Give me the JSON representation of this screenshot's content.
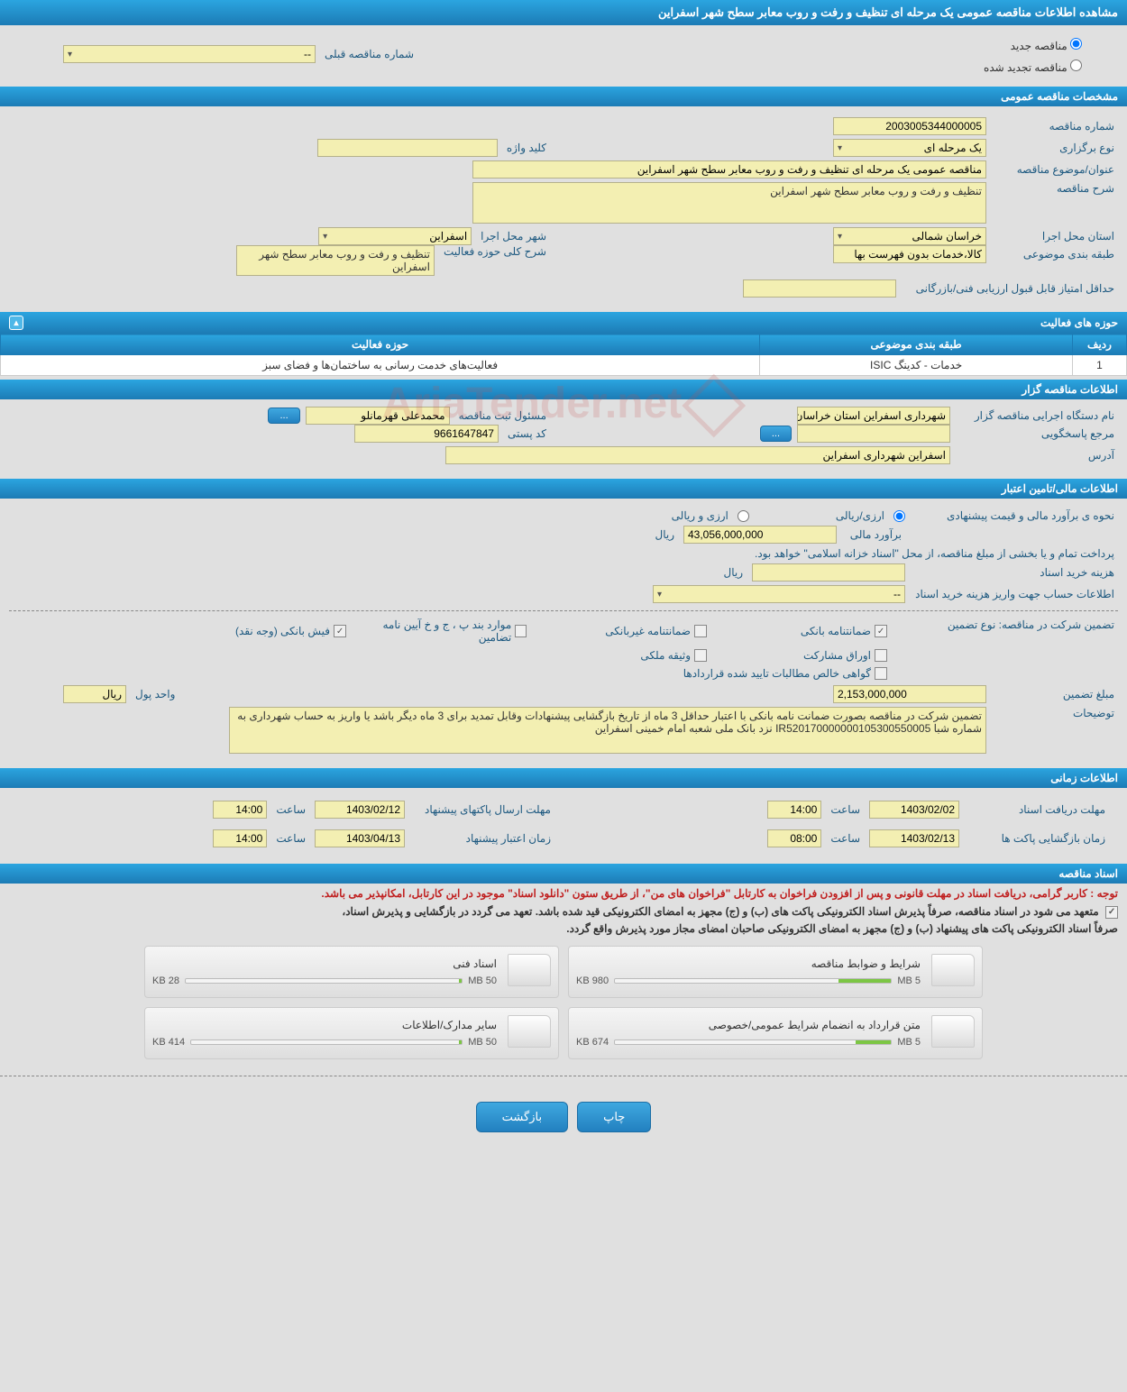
{
  "header": {
    "title": "مشاهده اطلاعات مناقصه عمومی یک مرحله ای تنظیف و رفت و روب معابر سطح شهر اسفراین"
  },
  "creation": {
    "new_label": "مناقصه جدید",
    "renew_label": "مناقصه تجدید شده",
    "prev_label": "شماره مناقصه قبلی",
    "prev_value": "--"
  },
  "general": {
    "section_title": "مشخصات مناقصه عمومی",
    "number_label": "شماره مناقصه",
    "number_value": "2003005344000005",
    "type_label": "نوع برگزاری",
    "type_value": "یک مرحله ای",
    "keyword_label": "کلید واژه",
    "keyword_value": "",
    "subject_label": "عنوان/موضوع مناقصه",
    "subject_value": "مناقصه عمومی یک مرحله ای تنظیف و رفت و روب معابر سطح شهر اسفراین",
    "desc_label": "شرح مناقصه",
    "desc_value": "تنظیف و رفت و روب معابر سطح شهر اسفراین",
    "province_label": "استان محل اجرا",
    "province_value": "خراسان شمالی",
    "city_label": "شهر محل اجرا",
    "city_value": "اسفراین",
    "category_label": "طبقه بندی موضوعی",
    "category_value": "کالا،خدمات بدون فهرست بها",
    "scope_desc_label": "شرح کلی حوزه فعالیت",
    "scope_desc_value": "تنظیف و رفت و روب معابر سطح شهر اسفراین",
    "min_score_label": "حداقل امتیاز قابل قبول ارزیابی فنی/بازرگانی",
    "min_score_value": ""
  },
  "activity": {
    "section_title": "حوزه های فعالیت",
    "headers": {
      "row": "ردیف",
      "category": "طبقه بندی موضوعی",
      "scope": "حوزه فعالیت"
    },
    "rows": [
      {
        "idx": "1",
        "category": "خدمات - کدینگ ISIC",
        "scope": "فعالیت‌های خدمت رسانی به ساختمان‌ها و فضای سبز"
      }
    ]
  },
  "organizer": {
    "section_title": "اطلاعات مناقصه گزار",
    "org_label": "نام دستگاه اجرایی مناقصه گزار",
    "org_value": "شهرداری اسفراین استان خراسان شمالی",
    "registrar_label": "مسئول ثبت مناقصه",
    "registrar_value": "محمدعلی قهرمانلو",
    "responder_label": "مرجع پاسخگویی",
    "responder_value": "",
    "postal_label": "کد پستی",
    "postal_value": "9661647847",
    "address_label": "آدرس",
    "address_value": "اسفراین شهرداری اسفراین"
  },
  "financial": {
    "section_title": "اطلاعات مالی/تامین اعتبار",
    "est_mode_label": "نحوه ی برآورد مالی و قیمت پیشنهادی",
    "est_mode_rial": "ارزی/ریالی",
    "est_mode_fx": "ارزی و ریالی",
    "est_label": "برآورد مالی",
    "est_value": "43,056,000,000",
    "currency": "ریال",
    "budget_note": "پرداخت تمام و یا بخشی از مبلغ مناقصه، از محل \"اسناد خزانه اسلامی\" خواهد بود.",
    "doc_cost_label": "هزینه خرید اسناد",
    "doc_cost_value": "",
    "doc_cost_currency": "ریال",
    "account_label": "اطلاعات حساب جهت واریز هزینه خرید اسناد",
    "account_value": "--",
    "guarantee_type_label": "تضمین شرکت در مناقصه:    نوع تضمین",
    "guarantee_checks": {
      "bank_guarantee": "ضمانتنامه بانکی",
      "non_bank_guarantee": "ضمانتنامه غیربانکی",
      "clause": "موارد بند پ ، ج و خ آیین نامه تضامین",
      "deposit": "فیش بانکی (وجه نقد)",
      "bonds": "اوراق مشارکت",
      "property": "وثیقه ملکی",
      "receivables": "گواهی خالص مطالبات تایید شده قراردادها"
    },
    "guarantee_amount_label": "مبلغ تضمین",
    "guarantee_amount_value": "2,153,000,000",
    "money_unit_label": "واحد پول",
    "money_unit_value": "ریال",
    "notes_label": "توضیحات",
    "notes_value": "تضمین شرکت در مناقصه بصورت ضمانت نامه بانکی با اعتبار حداقل 3 ماه از تاریخ بازگشایی پیشنهادات وقابل تمدید برای 3 ماه دیگر باشد یا واریز به حساب شهرداری به شماره شبا IR520170000000105300550005 نزد بانک ملی شعبه امام خمینی اسفراین"
  },
  "timing": {
    "section_title": "اطلاعات زمانی",
    "deadline_doc_label": "مهلت دریافت اسناد",
    "deadline_doc_date": "1403/02/02",
    "deadline_doc_time": "14:00",
    "deadline_submit_label": "مهلت ارسال پاکتهای پیشنهاد",
    "deadline_submit_date": "1403/02/12",
    "deadline_submit_time": "14:00",
    "open_label": "زمان بازگشایی پاکت ها",
    "open_date": "1403/02/13",
    "open_time": "08:00",
    "validity_label": "زمان اعتبار پیشنهاد",
    "validity_date": "1403/04/13",
    "validity_time": "14:00",
    "time_label": "ساعت"
  },
  "docs": {
    "section_title": "اسناد مناقصه",
    "red_note": "توجه : کاربر گرامی، دریافت اسناد در مهلت قانونی و پس از افزودن فراخوان به کارتابل \"فراخوان های من\"، از طریق ستون \"دانلود اسناد\" موجود در این کارتابل، امکانپذیر می باشد.",
    "bold1": "متعهد می شود در اسناد مناقصه، صرفاً پذیرش اسناد الکترونیکی پاکت های (ب) و (ج) مجهز به امضای الکترونیکی قید شده باشد. تعهد می گردد در بازگشایی و پذیرش اسناد،",
    "bold2": "صرفاً اسناد الکترونیکی پاکت های پیشنهاد (ب) و (ج) مجهز به امضای الکترونیکی صاحبان امضای مجاز مورد پذیرش واقع گردد.",
    "files": [
      {
        "title": "شرایط و ضوابط مناقصه",
        "used": "980 KB",
        "total": "5 MB",
        "fill_pct": 19
      },
      {
        "title": "اسناد فنی",
        "used": "28 KB",
        "total": "50 MB",
        "fill_pct": 1
      },
      {
        "title": "متن قرارداد به انضمام شرایط عمومی/خصوصی",
        "used": "674 KB",
        "total": "5 MB",
        "fill_pct": 13
      },
      {
        "title": "سایر مدارک/اطلاعات",
        "used": "414 KB",
        "total": "50 MB",
        "fill_pct": 1
      }
    ]
  },
  "footer": {
    "print": "چاپ",
    "back": "بازگشت"
  },
  "ellipsis": "...",
  "watermark": "AriaTender.net"
}
